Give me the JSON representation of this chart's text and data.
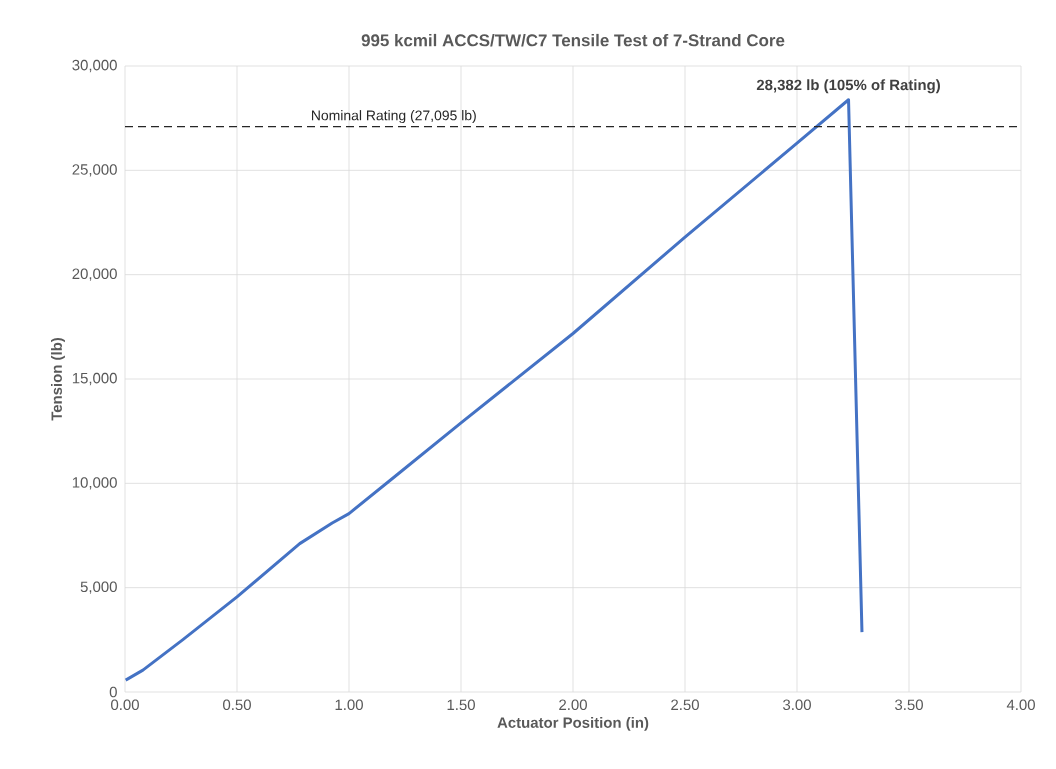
{
  "chart_data": {
    "type": "line",
    "title": "995 kcmil ACCS/TW/C7 Tensile Test of 7-Strand Core",
    "xlabel": "Actuator Position (in)",
    "ylabel": "Tension (lb)",
    "series": [
      {
        "color": "#4472c4",
        "x": [
          0.003,
          0.08,
          0.26,
          0.5,
          0.78,
          0.925,
          1.0,
          1.22,
          1.5,
          2.0,
          2.5,
          3.0,
          3.23,
          3.29
        ],
        "values": [
          570,
          1050,
          2520,
          4560,
          7110,
          8100,
          8550,
          10460,
          12900,
          17180,
          21800,
          26300,
          28382,
          2870
        ]
      }
    ],
    "xlim": [
      0,
      4
    ],
    "ylim": [
      0,
      30000
    ],
    "xticks": [
      {
        "value": 0,
        "label": "0.00"
      },
      {
        "value": 0.5,
        "label": "0.50"
      },
      {
        "value": 1,
        "label": "1.00"
      },
      {
        "value": 1.5,
        "label": "1.50"
      },
      {
        "value": 2,
        "label": "2.00"
      },
      {
        "value": 2.5,
        "label": "2.50"
      },
      {
        "value": 3,
        "label": "3.00"
      },
      {
        "value": 3.5,
        "label": "3.50"
      },
      {
        "value": 4,
        "label": "4.00"
      }
    ],
    "yticks": [
      {
        "value": 0,
        "label": "0"
      },
      {
        "value": 5000,
        "label": "5,000"
      },
      {
        "value": 10000,
        "label": "10,000"
      },
      {
        "value": 15000,
        "label": "15,000"
      },
      {
        "value": 20000,
        "label": "20,000"
      },
      {
        "value": 25000,
        "label": "25,000"
      },
      {
        "value": 30000,
        "label": "30,000"
      }
    ],
    "ref_lines": [
      {
        "axis": "y",
        "value": 27095,
        "label": "Nominal Rating (27,095 lb)",
        "color": "#262626",
        "line_style": "dashed"
      }
    ],
    "annotations": [
      {
        "text": "28,382 lb (105% of Rating)",
        "x": 3.23,
        "y": 28382
      }
    ],
    "grid": true,
    "marker": "none",
    "line_style": "solid"
  }
}
